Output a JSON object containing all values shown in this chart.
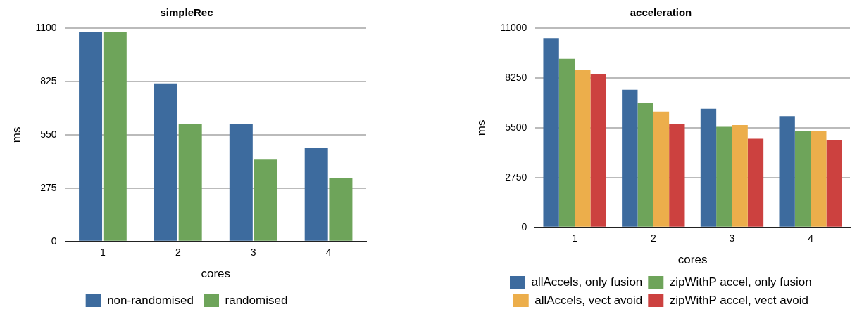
{
  "chart_data": [
    {
      "type": "bar",
      "title": "simpleRec",
      "xlabel": "cores",
      "ylabel": "ms",
      "categories": [
        "1",
        "2",
        "3",
        "4"
      ],
      "series": [
        {
          "name": "non-randomised",
          "color": "#3d6b9e",
          "values": [
            1078,
            815,
            607,
            483
          ]
        },
        {
          "name": "randomised",
          "color": "#6ea45a",
          "values": [
            1082,
            607,
            422,
            325
          ]
        }
      ],
      "ylim": [
        0,
        1100
      ],
      "yticks": [
        0,
        275,
        550,
        825,
        1100
      ],
      "grid": "y",
      "legend": "bottom"
    },
    {
      "type": "bar",
      "title": "acceleration",
      "xlabel": "cores",
      "ylabel": "ms",
      "categories": [
        "1",
        "2",
        "3",
        "4"
      ],
      "series": [
        {
          "name": "allAccels, only fusion",
          "color": "#3d6b9e",
          "values": [
            10450,
            7600,
            6550,
            6150
          ]
        },
        {
          "name": "zipWithP accel, only fusion",
          "color": "#6ea45a",
          "values": [
            9300,
            6850,
            5550,
            5300
          ]
        },
        {
          "name": "allAccels, vect avoid",
          "color": "#ecae4b",
          "values": [
            8700,
            6400,
            5650,
            5300
          ]
        },
        {
          "name": "zipWithP accel, vect avoid",
          "color": "#cc413f",
          "values": [
            8450,
            5700,
            4900,
            4800
          ]
        }
      ],
      "ylim": [
        0,
        11000
      ],
      "yticks": [
        0,
        2750,
        5500,
        8250,
        11000
      ],
      "grid": "y",
      "legend": "bottom"
    }
  ]
}
